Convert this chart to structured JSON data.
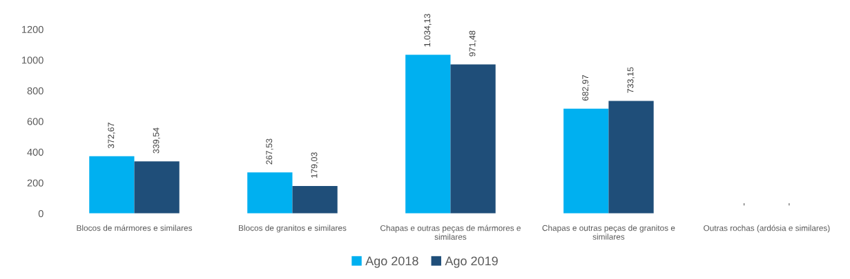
{
  "chart_data": {
    "type": "bar",
    "categories": [
      "Blocos de mármores e similares",
      "Blocos de granitos e similares",
      "Chapas e outras peças de mármores e similares",
      "Chapas e outras peças de granitos e similares",
      "Outras rochas (ardósia e similares)"
    ],
    "series": [
      {
        "name": "Ago 2018",
        "color": "#00b0f0",
        "values": [
          372.67,
          267.53,
          1034.13,
          682.97,
          null
        ],
        "value_labels": [
          "372,67",
          "267,53",
          "1.034,13",
          "682,97",
          "-"
        ]
      },
      {
        "name": "Ago 2019",
        "color": "#1f4e79",
        "values": [
          339.54,
          179.03,
          971.48,
          733.15,
          null
        ],
        "value_labels": [
          "339,54",
          "179,03",
          "971,48",
          "733,15",
          "-"
        ]
      }
    ],
    "ylim": [
      0,
      1200
    ],
    "yticks": [
      0,
      200,
      400,
      600,
      800,
      1000,
      1200
    ],
    "grid": false,
    "legend": "bottom"
  }
}
